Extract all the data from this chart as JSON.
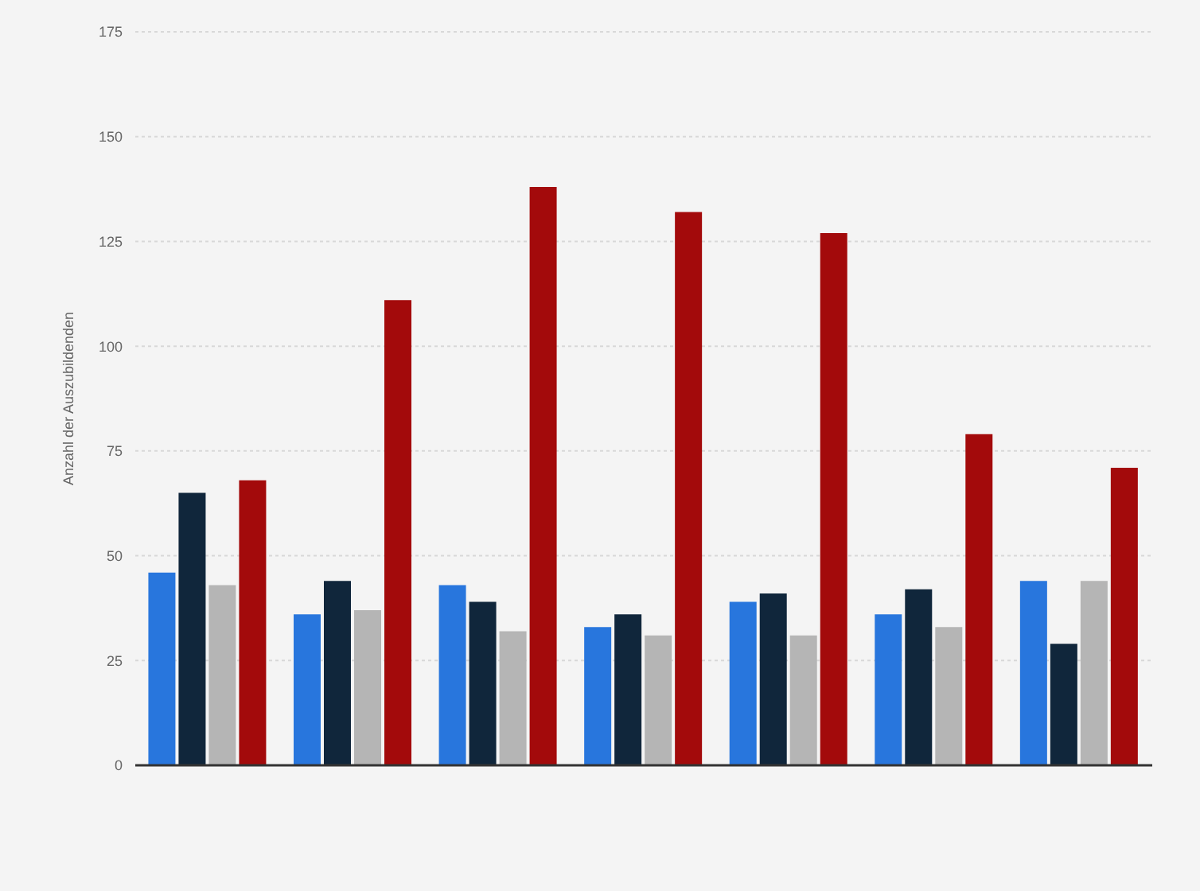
{
  "chart_data": {
    "type": "bar",
    "ylabel": "Anzahl der Auszubildenden",
    "categories": [
      null,
      null,
      null,
      null,
      null,
      null,
      null
    ],
    "series": [
      {
        "color": "#2876dd",
        "values": [
          46,
          36,
          43,
          33,
          39,
          36,
          44
        ]
      },
      {
        "color": "#10263b",
        "values": [
          65,
          44,
          39,
          36,
          41,
          42,
          29
        ]
      },
      {
        "color": "#b5b5b5",
        "values": [
          43,
          37,
          32,
          31,
          31,
          33,
          44
        ]
      },
      {
        "color": "#a30a0b",
        "values": [
          68,
          111,
          138,
          132,
          127,
          79,
          71
        ]
      }
    ],
    "ylim": [
      0,
      175
    ],
    "yticks": [
      0,
      25,
      50,
      75,
      100,
      125,
      150,
      175
    ],
    "grid": "y",
    "tick_labels": "y"
  }
}
